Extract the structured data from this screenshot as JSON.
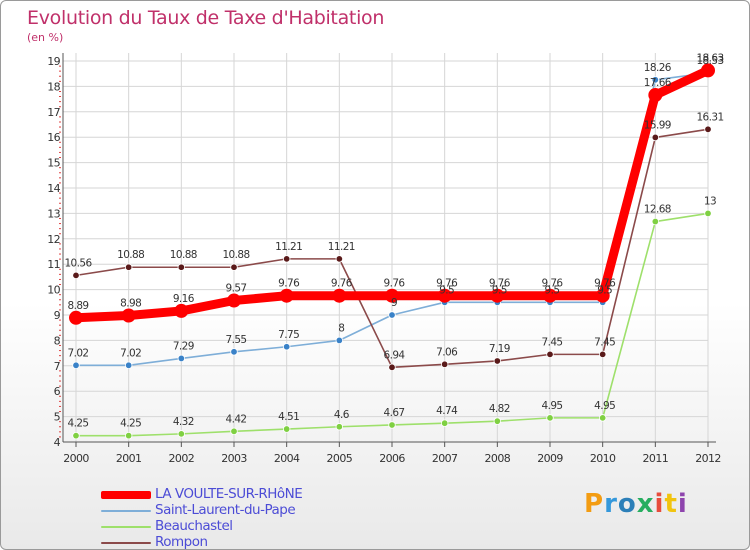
{
  "title": "Evolution du Taux de Taxe d'Habitation",
  "subtitle": "(en %)",
  "logo": {
    "text": "Proxiti",
    "letter_colors": [
      "#f39c12",
      "#3498db",
      "#2c7fb8",
      "#27ae60",
      "#e74c3c",
      "#f1c40f",
      "#8e44ad"
    ]
  },
  "chart_data": {
    "type": "line",
    "x": [
      2000,
      2001,
      2002,
      2003,
      2004,
      2005,
      2006,
      2007,
      2008,
      2009,
      2010,
      2011,
      2012
    ],
    "ylim": [
      4,
      19
    ],
    "y_ticks": [
      4,
      5,
      6,
      7,
      8,
      9,
      10,
      11,
      12,
      13,
      14,
      15,
      16,
      17,
      18,
      19
    ],
    "x_ticks": [
      "2000",
      "2001",
      "2002",
      "2003",
      "2004",
      "2005",
      "2006",
      "2007",
      "2008",
      "2009",
      "2010",
      "2011",
      "2012"
    ],
    "grid": true,
    "legend_position": "bottom-left",
    "series": [
      {
        "name": "Beauchastel",
        "color": "#9ee06b",
        "marker": "#7fd042",
        "emphasis": false,
        "values": [
          4.25,
          4.25,
          4.32,
          4.42,
          4.51,
          4.6,
          4.67,
          4.74,
          4.82,
          4.95,
          4.95,
          12.68,
          13
        ],
        "labels": [
          "4.25",
          "4.25",
          "4.32",
          "4.42",
          "4.51",
          "4.6",
          "4.67",
          "4.74",
          "4.82",
          "4.95",
          "4.95",
          "12.68",
          "13"
        ]
      },
      {
        "name": "Saint-Laurent-du-Pape",
        "color": "#7eaed8",
        "marker": "#3a82c8",
        "emphasis": false,
        "values": [
          7.02,
          7.02,
          7.29,
          7.55,
          7.75,
          8,
          9,
          9.5,
          9.5,
          9.5,
          9.5,
          18.26,
          18.53
        ],
        "labels": [
          "7.02",
          "7.02",
          "7.29",
          "7.55",
          "7.75",
          "8",
          "9",
          "9.5",
          "9.5",
          "9.5",
          "9.5",
          "18.26",
          "18.53"
        ]
      },
      {
        "name": "Rompon",
        "color": "#8b4a4a",
        "marker": "#5a1a1a",
        "emphasis": false,
        "values": [
          10.56,
          10.88,
          10.88,
          10.88,
          11.21,
          11.21,
          6.94,
          7.06,
          7.19,
          7.45,
          7.45,
          15.99,
          16.31
        ],
        "labels": [
          "10.56",
          "10.88",
          "10.88",
          "10.88",
          "11.21",
          "11.21",
          "6.94",
          "7.06",
          "7.19",
          "7.45",
          "7.45",
          "15.99",
          "16.31"
        ]
      },
      {
        "name": "LA VOULTE-SUR-RHôNE",
        "color": "#ff0000",
        "marker": "#ff0000",
        "emphasis": true,
        "values": [
          8.89,
          8.98,
          9.16,
          9.57,
          9.76,
          9.76,
          9.76,
          9.76,
          9.76,
          9.76,
          9.76,
          17.66,
          18.63
        ],
        "labels": [
          "8.89",
          "8.98",
          "9.16",
          "9.57",
          "9.76",
          "9.76",
          "9.76",
          "9.76",
          "9.76",
          "9.76",
          "9.76",
          "17.66",
          "18.63"
        ]
      }
    ],
    "legend_order": [
      3,
      1,
      0,
      2
    ]
  }
}
